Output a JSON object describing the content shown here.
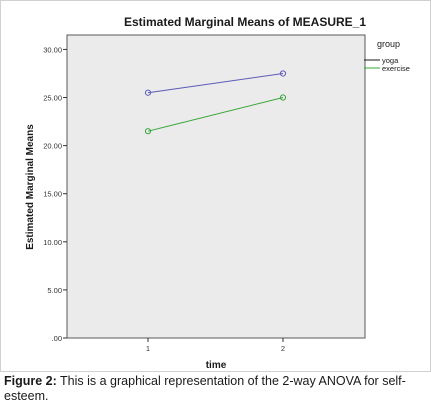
{
  "chart_data": {
    "type": "line",
    "title": "Estimated Marginal Means of MEASURE_1",
    "xlabel": "time",
    "ylabel": "Estimated Marginal Means",
    "categories": [
      "1",
      "2"
    ],
    "ylim": [
      0,
      31.5
    ],
    "yticks": [
      0,
      5,
      10,
      15,
      20,
      25,
      30
    ],
    "ytick_labels": [
      ".00",
      "5.00",
      "10.00",
      "15.00",
      "20.00",
      "25.00",
      "30.00"
    ],
    "series": [
      {
        "name": "yoga",
        "values": [
          25.5,
          27.5
        ],
        "color": "#5b5bb8"
      },
      {
        "name": "exercise",
        "values": [
          21.5,
          25.0
        ],
        "color": "#3aa63a"
      }
    ],
    "legend_title": "group",
    "legend_placement": "top-right",
    "grid": false,
    "plot_background": "#ebebeb"
  },
  "caption": {
    "label": "Figure 2:",
    "text": "This is a graphical representation of the 2-way ANOVA for self-esteem."
  }
}
